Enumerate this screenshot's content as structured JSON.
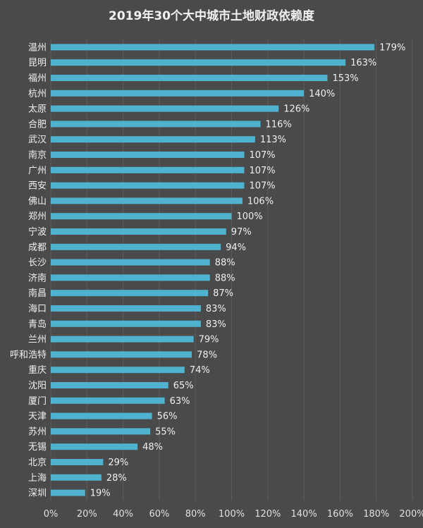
{
  "chart_data": {
    "type": "bar",
    "orientation": "horizontal",
    "title": "2019年30个大中城市土地财政依赖度",
    "categories": [
      "温州",
      "昆明",
      "福州",
      "杭州",
      "太原",
      "合肥",
      "武汉",
      "南京",
      "广州",
      "西安",
      "佛山",
      "郑州",
      "宁波",
      "成都",
      "长沙",
      "济南",
      "南昌",
      "海口",
      "青岛",
      "兰州",
      "呼和浩特",
      "重庆",
      "沈阳",
      "厦门",
      "天津",
      "苏州",
      "无锡",
      "北京",
      "上海",
      "深圳"
    ],
    "values": [
      179,
      163,
      153,
      140,
      126,
      116,
      113,
      107,
      107,
      107,
      106,
      100,
      97,
      94,
      88,
      88,
      87,
      83,
      83,
      79,
      78,
      74,
      65,
      63,
      56,
      55,
      48,
      29,
      28,
      19
    ],
    "value_labels": [
      "179%",
      "163%",
      "153%",
      "140%",
      "126%",
      "116%",
      "113%",
      "107%",
      "107%",
      "107%",
      "106%",
      "100%",
      "97%",
      "94%",
      "88%",
      "88%",
      "87%",
      "83%",
      "83%",
      "79%",
      "78%",
      "74%",
      "65%",
      "63%",
      "56%",
      "55%",
      "48%",
      "29%",
      "28%",
      "19%"
    ],
    "xlim": [
      0,
      200
    ],
    "xticks": [
      0,
      20,
      40,
      60,
      80,
      100,
      120,
      140,
      160,
      180,
      200
    ],
    "xtick_labels": [
      "0%",
      "20%",
      "40%",
      "60%",
      "80%",
      "100%",
      "120%",
      "140%",
      "160%",
      "180%",
      "200%"
    ],
    "xlabel": "",
    "ylabel": "",
    "grid": true,
    "colors": {
      "background": "#4a4a4a",
      "bar": "#4fb3cf",
      "grid": "#5d5d5d",
      "text": "#f0f0f0"
    }
  }
}
